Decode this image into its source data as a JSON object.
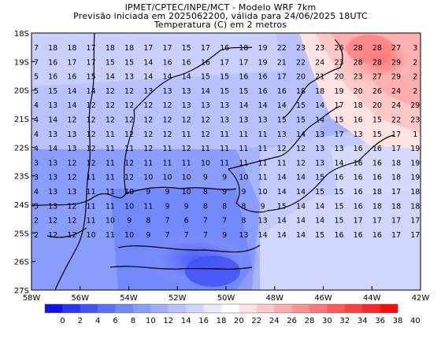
{
  "header": {
    "line1": "IPMET/CPTEC/INPE/MCT - Modelo WRF 7km",
    "line2": "Previsão iniciada em 2025062200, válida para 24/06/2025 18UTC",
    "line3": "Temperatura (C) em 2 metros"
  },
  "map": {
    "lon_range": [
      -58,
      -42
    ],
    "lat_range": [
      -27,
      -18
    ],
    "x_ticks": [
      "58W",
      "56W",
      "54W",
      "52W",
      "50W",
      "48W",
      "46W",
      "44W",
      "42W"
    ],
    "y_ticks": [
      "18S",
      "19S",
      "20S",
      "21S",
      "22S",
      "23S",
      "24S",
      "25S",
      "26S",
      "27S"
    ],
    "value_rows": [
      [
        "7",
        "18",
        "18",
        "17",
        "18",
        "18",
        "17",
        "17",
        "15",
        "17",
        "16",
        "18",
        "19",
        "22",
        "23",
        "23",
        "26",
        "28",
        "28",
        "27",
        "3"
      ],
      [
        "7",
        "16",
        "17",
        "17",
        "15",
        "15",
        "14",
        "16",
        "16",
        "16",
        "17",
        "17",
        "19",
        "21",
        "22",
        "24",
        "23",
        "28",
        "28",
        "29",
        "2"
      ],
      [
        "5",
        "16",
        "16",
        "15",
        "14",
        "13",
        "14",
        "14",
        "14",
        "15",
        "15",
        "16",
        "16",
        "17",
        "20",
        "21",
        "20",
        "23",
        "27",
        "29",
        "2"
      ],
      [
        "5",
        "15",
        "14",
        "14",
        "12",
        "12",
        "13",
        "13",
        "13",
        "14",
        "15",
        "15",
        "16",
        "16",
        "18",
        "18",
        "19",
        "20",
        "26",
        "24",
        "2"
      ],
      [
        "4",
        "13",
        "14",
        "12",
        "12",
        "12",
        "12",
        "12",
        "13",
        "13",
        "13",
        "14",
        "14",
        "14",
        "15",
        "14",
        "17",
        "18",
        "20",
        "24",
        "29"
      ],
      [
        "4",
        "14",
        "12",
        "12",
        "12",
        "12",
        "12",
        "12",
        "12",
        "12",
        "13",
        "13",
        "13",
        "15",
        "15",
        "14",
        "15",
        "16",
        "15",
        "22",
        "23"
      ],
      [
        "4",
        "13",
        "13",
        "12",
        "11",
        "12",
        "12",
        "12",
        "11",
        "12",
        "11",
        "11",
        "11",
        "13",
        "14",
        "13",
        "17",
        "13",
        "15",
        "17",
        "1"
      ],
      [
        "4",
        "14",
        "13",
        "12",
        "11",
        "11",
        "12",
        "11",
        "12",
        "11",
        "11",
        "11",
        "11",
        "12",
        "12",
        "13",
        "13",
        "16",
        "16",
        "17",
        "19"
      ],
      [
        "3",
        "13",
        "12",
        "12",
        "11",
        "12",
        "11",
        "11",
        "11",
        "10",
        "11",
        "11",
        "11",
        "11",
        "12",
        "13",
        "14",
        "16",
        "16",
        "18",
        "19"
      ],
      [
        "3",
        "13",
        "12",
        "11",
        "11",
        "12",
        "10",
        "10",
        "10",
        "9",
        "9",
        "10",
        "11",
        "14",
        "14",
        "15",
        "16",
        "16",
        "16",
        "18",
        "19"
      ],
      [
        "4",
        "13",
        "13",
        "11",
        "11",
        "10",
        "9",
        "9",
        "10",
        "8",
        "9",
        "9",
        "10",
        "14",
        "14",
        "15",
        "15",
        "16",
        "18",
        "17",
        "18"
      ],
      [
        "3",
        "13",
        "12",
        "11",
        "11",
        "10",
        "11",
        "9",
        "9",
        "8",
        "8",
        "8",
        "9",
        "15",
        "14",
        "14",
        "15",
        "16",
        "18",
        "18",
        "18"
      ],
      [
        "2",
        "12",
        "12",
        "11",
        "10",
        "9",
        "8",
        "7",
        "6",
        "7",
        "7",
        "8",
        "13",
        "14",
        "14",
        "14",
        "15",
        "17",
        "17",
        "17",
        "17"
      ],
      [
        "2",
        "12",
        "12",
        "10",
        "11",
        "10",
        "9",
        "7",
        "7",
        "7",
        "9",
        "13",
        "14",
        "14",
        "14",
        "15",
        "16",
        "16",
        "16",
        "17",
        "17"
      ]
    ]
  },
  "colorbar": {
    "labels": [
      "0",
      "2",
      "4",
      "6",
      "8",
      "10",
      "12",
      "14",
      "16",
      "18",
      "20",
      "22",
      "24",
      "26",
      "28",
      "30",
      "32",
      "34",
      "36",
      "38",
      "40"
    ],
    "colors": [
      "#1010f0",
      "#2b33f5",
      "#3f53f8",
      "#5a72fa",
      "#7189fb",
      "#8a9dfc",
      "#a0aefc",
      "#b9c2fd",
      "#d0d6fe",
      "#e7eaff",
      "#ffffff",
      "#ffe3e3",
      "#ffc8c8",
      "#ffadad",
      "#ff9191",
      "#ff7676",
      "#ff5b5b",
      "#ff4040",
      "#ff2525",
      "#ff0a0a"
    ]
  }
}
